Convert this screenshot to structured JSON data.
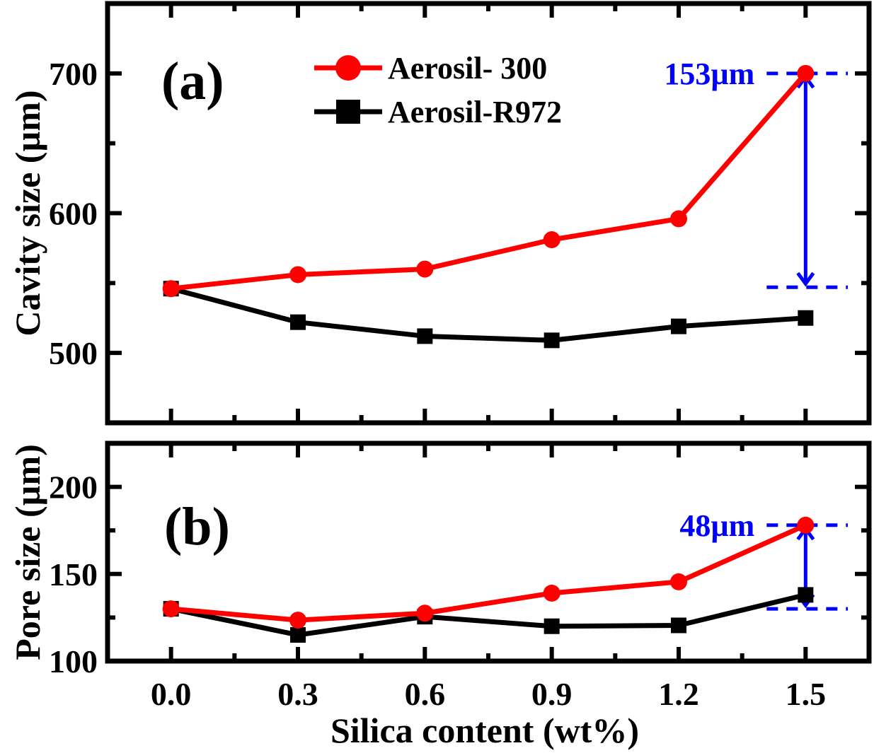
{
  "chart_data": [
    {
      "type": "line",
      "panel_label": "(a)",
      "xlabel": "",
      "ylabel": "Cavity size (µm)",
      "xlim": [
        -0.15,
        1.65
      ],
      "ylim": [
        450,
        750
      ],
      "xticks": [
        0.0,
        0.3,
        0.6,
        0.9,
        1.2,
        1.5
      ],
      "xtick_labels": [],
      "yticks": [
        500,
        600,
        700
      ],
      "ytick_labels": [
        "500",
        "600",
        "700"
      ],
      "yminor_ticks": [
        450,
        550,
        650,
        750
      ],
      "x": [
        0.0,
        0.3,
        0.6,
        0.9,
        1.2,
        1.5
      ],
      "series": [
        {
          "name": "Aerosil- 300",
          "marker": "circle",
          "color": "#ff0000",
          "values": [
            546,
            556,
            560,
            581,
            596,
            700
          ]
        },
        {
          "name": "Aerosil-R972",
          "marker": "square",
          "color": "#000000",
          "values": [
            546,
            522,
            512,
            509,
            519,
            525
          ]
        }
      ],
      "legend": {
        "position": "top-center",
        "entries": [
          "Aerosil- 300",
          "Aerosil-R972"
        ]
      },
      "annotation": {
        "text": "153µm",
        "x": 1.5,
        "y_from": 547,
        "y_to": 700,
        "color": "#0000ff"
      },
      "grid": false
    },
    {
      "type": "line",
      "panel_label": "(b)",
      "xlabel": "Silica content (wt%)",
      "ylabel": "Pore size (µm)",
      "xlim": [
        -0.15,
        1.65
      ],
      "ylim": [
        100,
        225
      ],
      "xticks": [
        0.0,
        0.3,
        0.6,
        0.9,
        1.2,
        1.5
      ],
      "xtick_labels": [
        "0.0",
        "0.3",
        "0.6",
        "0.9",
        "1.2",
        "1.5"
      ],
      "yticks": [
        100,
        150,
        200
      ],
      "ytick_labels": [
        "100",
        "150",
        "200"
      ],
      "yminor_ticks": [
        125,
        175,
        225
      ],
      "x": [
        0.0,
        0.3,
        0.6,
        0.9,
        1.2,
        1.5
      ],
      "series": [
        {
          "name": "Aerosil- 300",
          "marker": "circle",
          "color": "#ff0000",
          "values": [
            130,
            123.5,
            127.5,
            139,
            145.5,
            178
          ]
        },
        {
          "name": "Aerosil-R972",
          "marker": "square",
          "color": "#000000",
          "values": [
            130,
            115,
            125.5,
            120,
            120.5,
            138
          ]
        }
      ],
      "annotation": {
        "text": "48µm",
        "x": 1.5,
        "y_from": 130,
        "y_to": 178,
        "color": "#0000ff"
      },
      "grid": false
    }
  ]
}
